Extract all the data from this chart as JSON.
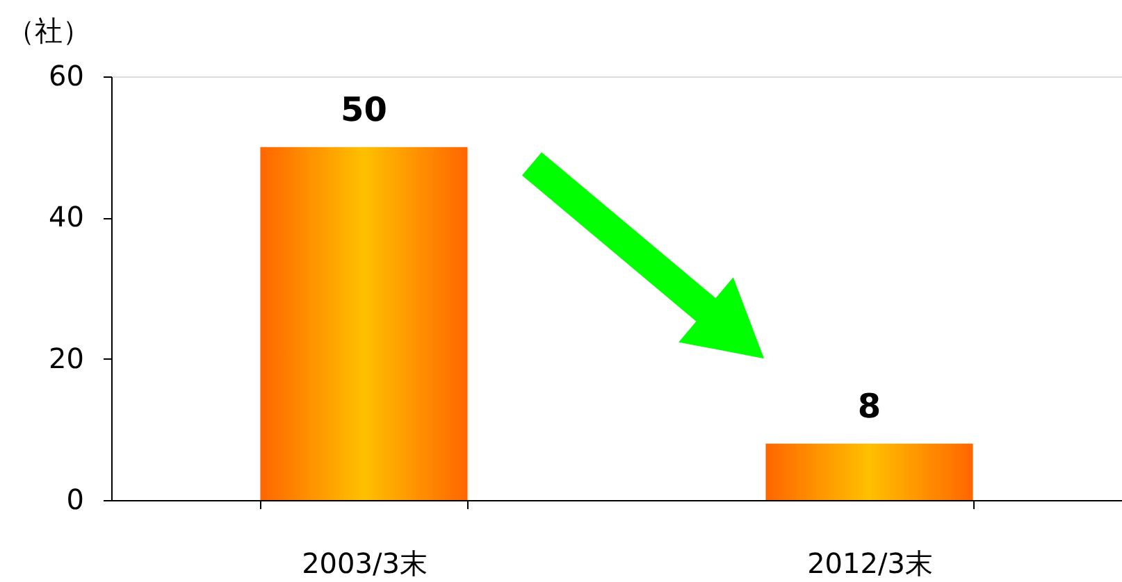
{
  "chart_data": {
    "type": "bar",
    "ylabel": "（社）",
    "categories": [
      "2003/3末",
      "2012/3末"
    ],
    "values": [
      50,
      8
    ],
    "color": "#ffc000",
    "ylim": [
      0,
      60
    ],
    "yticks": [
      0,
      20,
      40,
      60
    ],
    "grid": false,
    "data_labels": true
  }
}
